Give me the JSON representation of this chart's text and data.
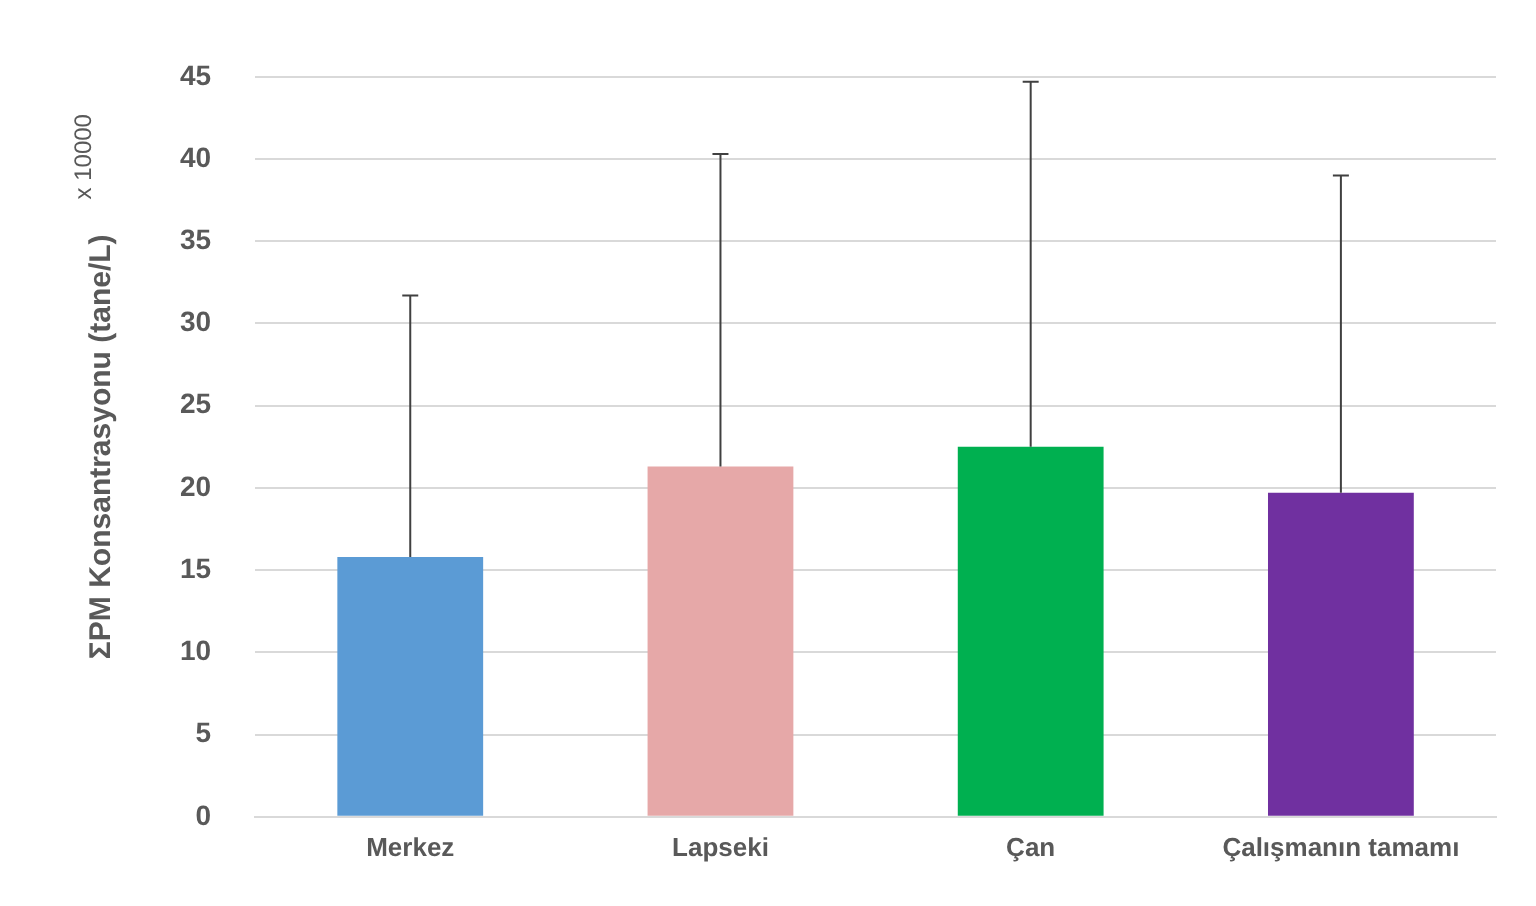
{
  "chart_data": {
    "type": "bar",
    "ylabel": "ΣPM Konsantrasyonu (tane/L)",
    "annotations": [
      "x 10000"
    ],
    "categories": [
      "Merkez",
      "Lapseki",
      "Çan",
      "Çalışmanın tamamı"
    ],
    "values": [
      15.8,
      21.3,
      22.5,
      19.7
    ],
    "errors": [
      [
        15.8,
        31.7
      ],
      [
        21.3,
        40.3
      ],
      [
        22.5,
        44.7
      ],
      [
        19.7,
        39.0
      ]
    ],
    "colors": [
      "#5b9bd5",
      "#e6a8a8",
      "#00b050",
      "#7030a0"
    ],
    "ylim": [
      0,
      45
    ],
    "yticks": [
      0,
      5,
      10,
      15,
      20,
      25,
      30,
      35,
      40,
      45
    ],
    "grid": "y",
    "legend": false
  }
}
